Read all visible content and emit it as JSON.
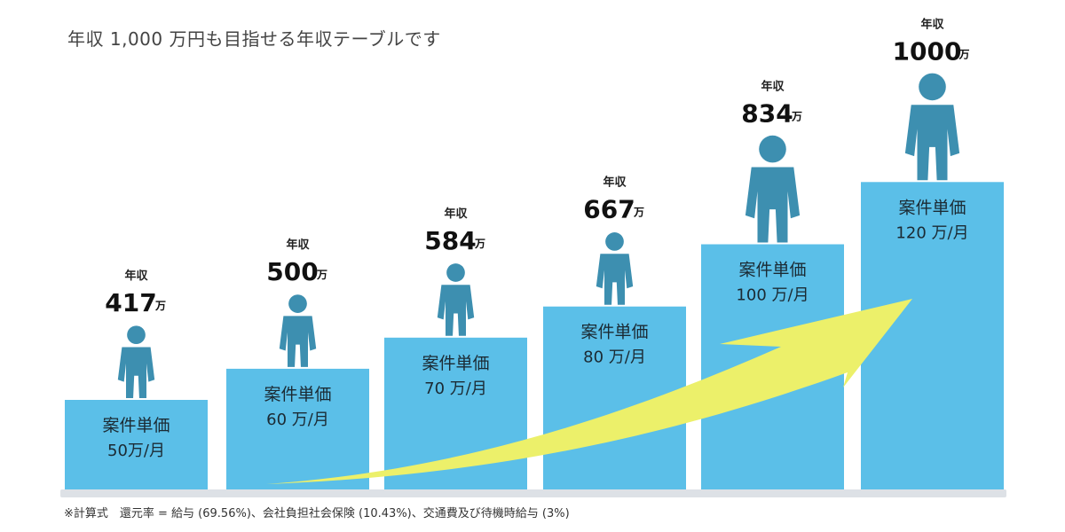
{
  "title": "年収 1,000 万円も目指せる年収テーブルです",
  "footnote": "※計算式　還元率 = 給与 (69.56%)、会社負担社会保険 (10.43%)、交通費及び待機時給与 (3%)",
  "chart_data": {
    "type": "bar",
    "bar_label_heading": "案件単価",
    "annual_heading": "年収",
    "annual_unit": "万",
    "categories": [
      "50万/月",
      "60 万/月",
      "70 万/月",
      "80 万/月",
      "100 万/月",
      "120 万/月"
    ],
    "values": [
      50,
      60,
      70,
      80,
      100,
      120
    ],
    "value_unit": "万/月",
    "annual_income": [
      417,
      500,
      584,
      667,
      834,
      1000
    ],
    "colors": {
      "bar": "#5bbfe8",
      "base": "#dde1e6",
      "arrow": "#ecf06a",
      "figure": "#3d8fb0"
    },
    "figures": [
      "person-head-in-hand-icon",
      "person-stressed-icon",
      "person-on-phone-icon",
      "person-thinking-icon",
      "person-presenting-icon",
      "person-fist-pump-icon"
    ]
  }
}
